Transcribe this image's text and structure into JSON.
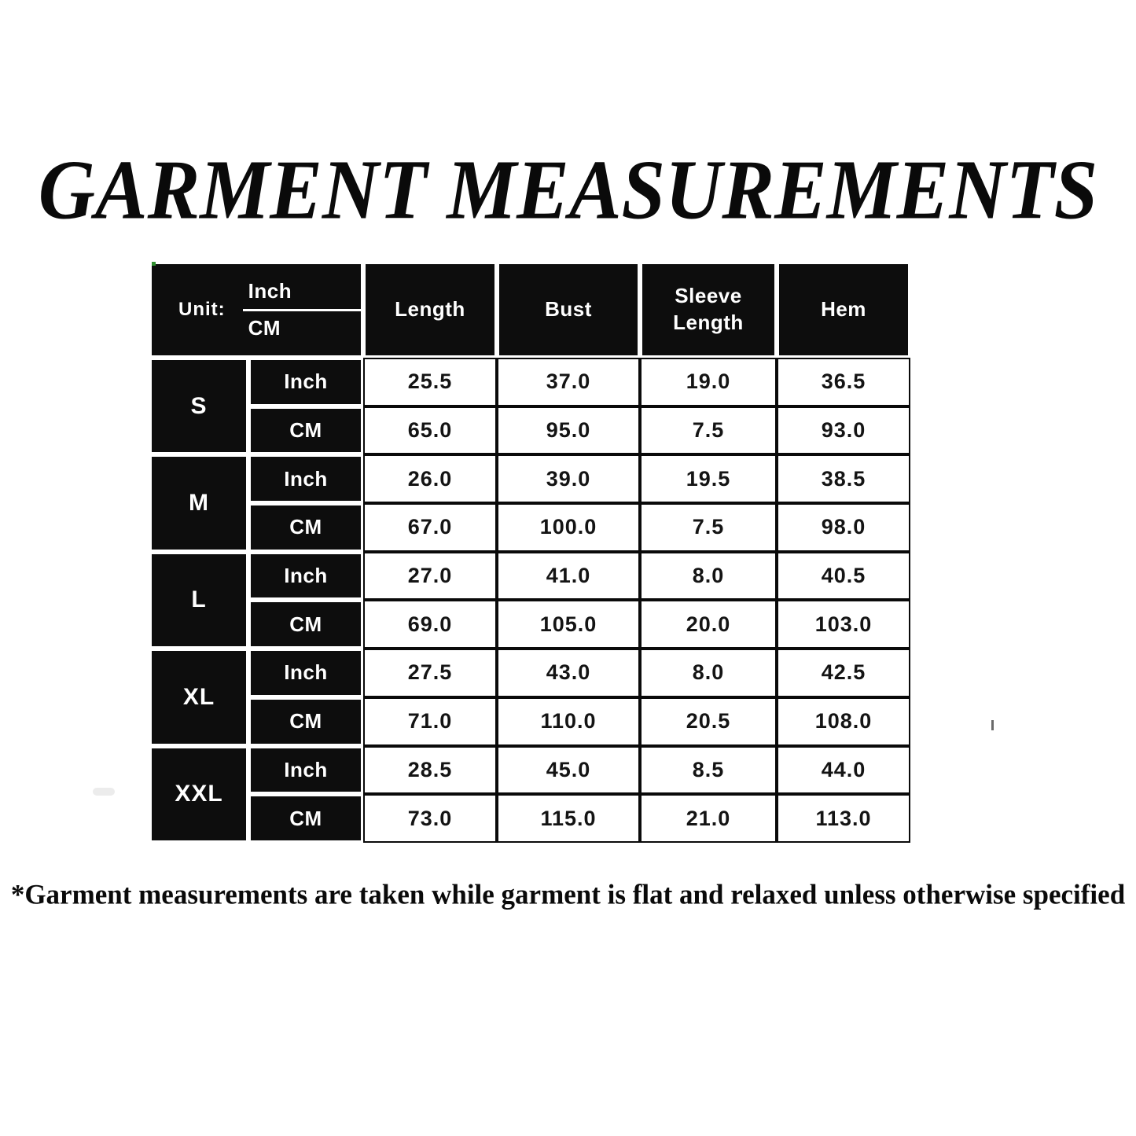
{
  "title": "GARMENT MEASUREMENTS",
  "footnote": "*Garment measurements are taken while garment is flat and relaxed unless otherwise specified",
  "colors": {
    "background": "#ffffff",
    "cell_black": "#0d0d0d",
    "cell_text_white": "#ffffff",
    "border_black": "#0a0a0a",
    "value_text": "#141414"
  },
  "table": {
    "unit_label": "Unit:",
    "unit_top": "Inch",
    "unit_bottom": "CM",
    "columns": [
      "Length",
      "Bust",
      "Sleeve Length",
      "Hem"
    ],
    "row_unit_labels": [
      "Inch",
      "CM"
    ],
    "sizes": [
      {
        "size": "S",
        "inch": [
          "25.5",
          "37.0",
          "19.0",
          "36.5"
        ],
        "cm": [
          "65.0",
          "95.0",
          "7.5",
          "93.0"
        ]
      },
      {
        "size": "M",
        "inch": [
          "26.0",
          "39.0",
          "19.5",
          "38.5"
        ],
        "cm": [
          "67.0",
          "100.0",
          "7.5",
          "98.0"
        ]
      },
      {
        "size": "L",
        "inch": [
          "27.0",
          "41.0",
          "8.0",
          "40.5"
        ],
        "cm": [
          "69.0",
          "105.0",
          "20.0",
          "103.0"
        ]
      },
      {
        "size": "XL",
        "inch": [
          "27.5",
          "43.0",
          "8.0",
          "42.5"
        ],
        "cm": [
          "71.0",
          "110.0",
          "20.5",
          "108.0"
        ]
      },
      {
        "size": "XXL",
        "inch": [
          "28.5",
          "45.0",
          "8.5",
          "44.0"
        ],
        "cm": [
          "73.0",
          "115.0",
          "21.0",
          "113.0"
        ]
      }
    ]
  }
}
